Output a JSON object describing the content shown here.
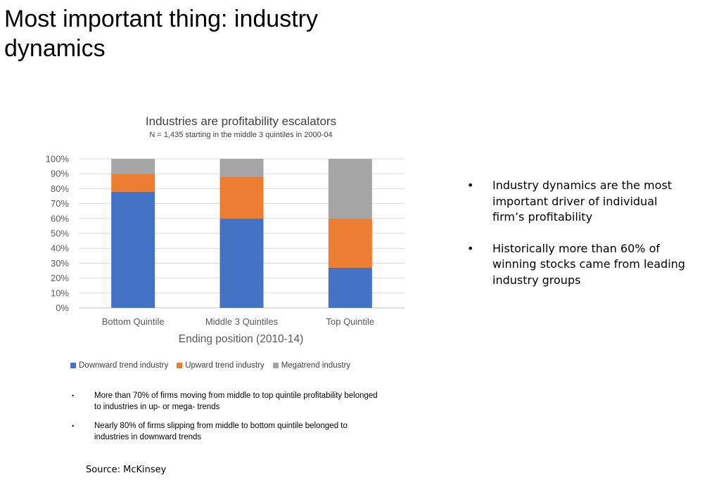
{
  "slide": {
    "title": "Most important thing: industry dynamics",
    "source": "Source: McKinsey"
  },
  "bullets": [
    {
      "bullet": "•",
      "text": "Industry dynamics are the most important driver of individual firm’s profitability"
    },
    {
      "bullet": "•",
      "text": "Historically more than 60% of winning stocks came from leading industry groups"
    }
  ],
  "notes": [
    {
      "bullet": "•",
      "text": "More than 70% of firms moving from middle to top quintile profitability  belonged to industries in up- or mega- trends"
    },
    {
      "bullet": "•",
      "text": "Nearly 80% of firms slipping from middle to bottom quintile belonged to industries in downward trends"
    }
  ],
  "chart_data": {
    "type": "bar",
    "stacked": true,
    "title": "Industries are profitability escalators",
    "subtitle": "N = 1,435 starting in the middle 3 quintiles in 2000-04",
    "xlabel": "Ending position (2010-14)",
    "ylabel": "",
    "categories": [
      "Bottom Quintile",
      "Middle 3 Quintiles",
      "Top Quintile"
    ],
    "series": [
      {
        "name": "Downward trend industry",
        "color": "#4472C4",
        "values": [
          78,
          60,
          27
        ]
      },
      {
        "name": "Upward trend industry",
        "color": "#ED7D31",
        "values": [
          12,
          28,
          33
        ]
      },
      {
        "name": "Megatrend industry",
        "color": "#A5A5A5",
        "values": [
          10,
          12,
          40
        ]
      }
    ],
    "ylim": [
      0,
      100
    ],
    "yticks": [
      "0%",
      "10%",
      "20%",
      "30%",
      "40%",
      "50%",
      "60%",
      "70%",
      "80%",
      "90%",
      "100%"
    ],
    "grid": true,
    "legend_position": "bottom"
  }
}
